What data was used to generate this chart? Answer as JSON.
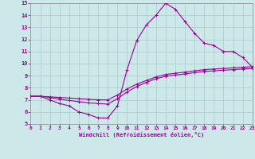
{
  "xlabel": "Windchill (Refroidissement éolien,°C)",
  "bg_color": "#cce8e8",
  "grid_color": "#aacccc",
  "line_color": "#990099",
  "xlim": [
    0,
    23
  ],
  "ylim": [
    5,
    15
  ],
  "xticks": [
    0,
    1,
    2,
    3,
    4,
    5,
    6,
    7,
    8,
    9,
    10,
    11,
    12,
    13,
    14,
    15,
    16,
    17,
    18,
    19,
    20,
    21,
    22,
    23
  ],
  "yticks": [
    5,
    6,
    7,
    8,
    9,
    10,
    11,
    12,
    13,
    14,
    15
  ],
  "line1_x": [
    0,
    1,
    2,
    3,
    4,
    5,
    6,
    7,
    8,
    9,
    10,
    11,
    12,
    13,
    14,
    15,
    16,
    17,
    18,
    19,
    20,
    21,
    22,
    23
  ],
  "line1_y": [
    7.3,
    7.3,
    7.0,
    6.7,
    6.5,
    6.0,
    5.8,
    5.5,
    5.5,
    6.5,
    9.5,
    11.9,
    13.2,
    14.0,
    15.0,
    14.5,
    13.5,
    12.5,
    11.7,
    11.5,
    11.0,
    11.0,
    10.5,
    9.7
  ],
  "line2_x": [
    0,
    1,
    2,
    3,
    4,
    5,
    6,
    7,
    8,
    9,
    10,
    11,
    12,
    13,
    14,
    15,
    16,
    17,
    18,
    19,
    20,
    21,
    22,
    23
  ],
  "line2_y": [
    7.3,
    7.3,
    7.25,
    7.2,
    7.15,
    7.1,
    7.05,
    7.0,
    7.0,
    7.4,
    7.9,
    8.3,
    8.6,
    8.9,
    9.1,
    9.2,
    9.3,
    9.4,
    9.5,
    9.55,
    9.6,
    9.65,
    9.7,
    9.75
  ],
  "line3_x": [
    0,
    1,
    2,
    3,
    4,
    5,
    6,
    7,
    8,
    9,
    10,
    11,
    12,
    13,
    14,
    15,
    16,
    17,
    18,
    19,
    20,
    21,
    22,
    23
  ],
  "line3_y": [
    7.3,
    7.3,
    7.2,
    7.05,
    6.95,
    6.85,
    6.75,
    6.7,
    6.65,
    7.1,
    7.65,
    8.1,
    8.45,
    8.75,
    8.95,
    9.05,
    9.15,
    9.25,
    9.35,
    9.4,
    9.45,
    9.5,
    9.55,
    9.6
  ]
}
